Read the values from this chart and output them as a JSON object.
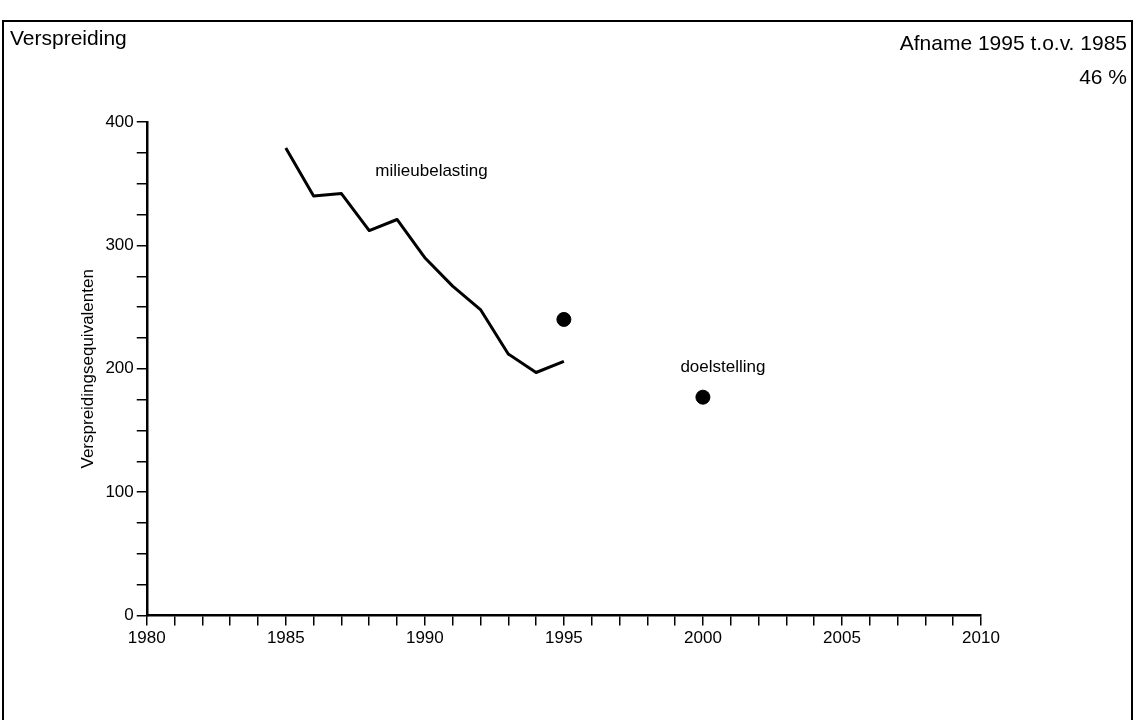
{
  "chart_data": {
    "type": "line",
    "title": "Verspreiding",
    "ylabel": "Verspreidingsequivalenten",
    "annotations": [
      "Afname 1995 t.o.v. 1985",
      "46 %"
    ],
    "series": [
      {
        "type": "line",
        "name": "milieubelasting",
        "color": "#000000",
        "x": [
          1985,
          1986,
          1987,
          1988,
          1989,
          1990,
          1991,
          1992,
          1993,
          1994,
          1995
        ],
        "values": [
          379,
          340,
          342,
          312,
          321,
          290,
          267,
          248,
          212,
          197,
          206
        ],
        "marker": "none"
      },
      {
        "type": "scatter",
        "name": "doelstelling",
        "color": "#000000",
        "x": [
          1995,
          2000
        ],
        "values": [
          240,
          177
        ],
        "marker": "circle"
      }
    ],
    "xlim": [
      1980,
      2010
    ],
    "xticks": [
      1980,
      {
        "value": 1981,
        "label": null
      },
      {
        "value": 1982,
        "label": null
      },
      {
        "value": 1983,
        "label": null
      },
      {
        "value": 1984,
        "label": null
      },
      1985,
      {
        "value": 1986,
        "label": null
      },
      {
        "value": 1987,
        "label": null
      },
      {
        "value": 1988,
        "label": null
      },
      {
        "value": 1989,
        "label": null
      },
      1990,
      {
        "value": 1991,
        "label": null
      },
      {
        "value": 1992,
        "label": null
      },
      {
        "value": 1993,
        "label": null
      },
      {
        "value": 1994,
        "label": null
      },
      1995,
      {
        "value": 1996,
        "label": null
      },
      {
        "value": 1997,
        "label": null
      },
      {
        "value": 1998,
        "label": null
      },
      {
        "value": 1999,
        "label": null
      },
      2000,
      {
        "value": 2001,
        "label": null
      },
      {
        "value": 2002,
        "label": null
      },
      {
        "value": 2003,
        "label": null
      },
      {
        "value": 2004,
        "label": null
      },
      2005,
      {
        "value": 2006,
        "label": null
      },
      {
        "value": 2007,
        "label": null
      },
      {
        "value": 2008,
        "label": null
      },
      {
        "value": 2009,
        "label": null
      },
      2010
    ],
    "ylim": [
      0,
      400
    ],
    "yticks": [
      0,
      {
        "value": 25,
        "label": null
      },
      {
        "value": 50,
        "label": null
      },
      {
        "value": 75,
        "label": null
      },
      100,
      {
        "value": 125,
        "label": null
      },
      {
        "value": 150,
        "label": null
      },
      {
        "value": 175,
        "label": null
      },
      200,
      {
        "value": 225,
        "label": null
      },
      {
        "value": 250,
        "label": null
      },
      {
        "value": 275,
        "label": null
      },
      300,
      {
        "value": 325,
        "label": null
      },
      {
        "value": 350,
        "label": null
      },
      {
        "value": 375,
        "label": null
      },
      400
    ],
    "grid": false,
    "legend": false
  }
}
